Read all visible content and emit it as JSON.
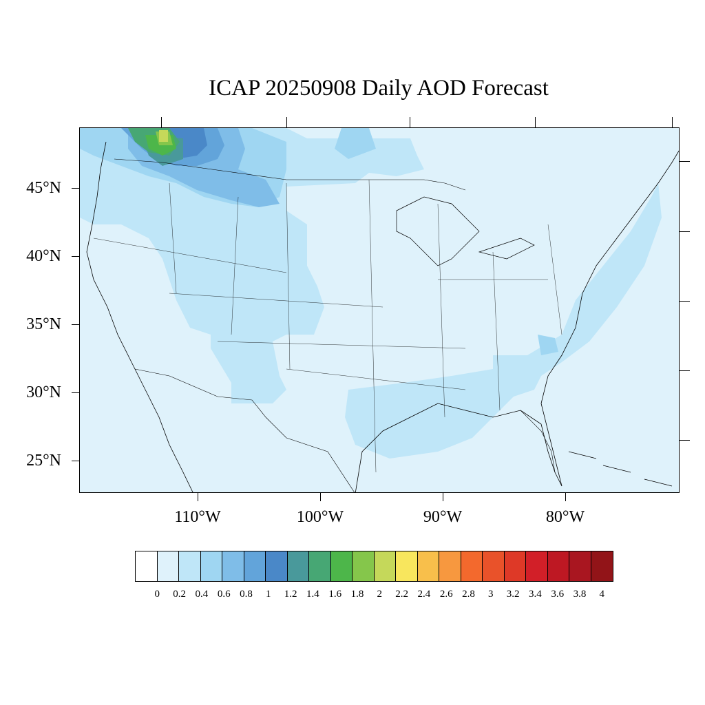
{
  "title": "ICAP 20250908 Daily AOD Forecast",
  "lat_labels": [
    "45°N",
    "40°N",
    "35°N",
    "30°N",
    "25°N"
  ],
  "lon_labels": [
    "110°W",
    "100°W",
    "90°W",
    "80°W"
  ],
  "colorbar": {
    "colors": [
      "#ffffff",
      "#dff2fb",
      "#bfe6f8",
      "#9fd6f2",
      "#7fbde8",
      "#62a4da",
      "#4a88c8",
      "#49999b",
      "#47a774",
      "#4db64a",
      "#85c64b",
      "#c5d85a",
      "#f8e65d",
      "#f8bf4b",
      "#f7983f",
      "#f3692d",
      "#e9522a",
      "#de3927",
      "#d21f28",
      "#be1823",
      "#a91620",
      "#921418"
    ],
    "labels": [
      "0",
      "0.2",
      "0.4",
      "0.6",
      "0.8",
      "1",
      "1.2",
      "1.4",
      "1.6",
      "1.8",
      "2",
      "2.2",
      "2.4",
      "2.6",
      "2.8",
      "3",
      "3.2",
      "3.4",
      "3.6",
      "3.8",
      "4"
    ]
  }
}
